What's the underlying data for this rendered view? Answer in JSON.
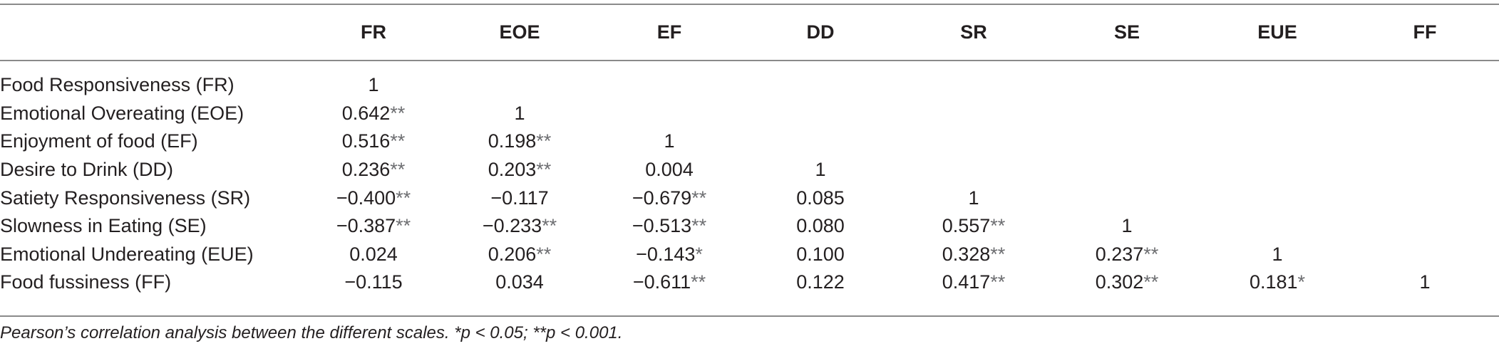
{
  "table": {
    "columns": [
      "FR",
      "EOE",
      "EF",
      "DD",
      "SR",
      "SE",
      "EUE",
      "FF"
    ],
    "rows": [
      {
        "label": "Food Responsiveness (FR)",
        "cells": [
          {
            "v": "1",
            "s": ""
          },
          {
            "v": "",
            "s": ""
          },
          {
            "v": "",
            "s": ""
          },
          {
            "v": "",
            "s": ""
          },
          {
            "v": "",
            "s": ""
          },
          {
            "v": "",
            "s": ""
          },
          {
            "v": "",
            "s": ""
          },
          {
            "v": "",
            "s": ""
          }
        ]
      },
      {
        "label": "Emotional Overeating (EOE)",
        "cells": [
          {
            "v": "0.642",
            "s": "**"
          },
          {
            "v": "1",
            "s": ""
          },
          {
            "v": "",
            "s": ""
          },
          {
            "v": "",
            "s": ""
          },
          {
            "v": "",
            "s": ""
          },
          {
            "v": "",
            "s": ""
          },
          {
            "v": "",
            "s": ""
          },
          {
            "v": "",
            "s": ""
          }
        ]
      },
      {
        "label": "Enjoyment of food (EF)",
        "cells": [
          {
            "v": "0.516",
            "s": "**"
          },
          {
            "v": "0.198",
            "s": "**"
          },
          {
            "v": "1",
            "s": ""
          },
          {
            "v": "",
            "s": ""
          },
          {
            "v": "",
            "s": ""
          },
          {
            "v": "",
            "s": ""
          },
          {
            "v": "",
            "s": ""
          },
          {
            "v": "",
            "s": ""
          }
        ]
      },
      {
        "label": "Desire to Drink (DD)",
        "cells": [
          {
            "v": "0.236",
            "s": "**"
          },
          {
            "v": "0.203",
            "s": "**"
          },
          {
            "v": "0.004",
            "s": ""
          },
          {
            "v": "1",
            "s": ""
          },
          {
            "v": "",
            "s": ""
          },
          {
            "v": "",
            "s": ""
          },
          {
            "v": "",
            "s": ""
          },
          {
            "v": "",
            "s": ""
          }
        ]
      },
      {
        "label": "Satiety Responsiveness (SR)",
        "cells": [
          {
            "v": "−0.400",
            "s": "**"
          },
          {
            "v": "−0.117",
            "s": ""
          },
          {
            "v": "−0.679",
            "s": "**"
          },
          {
            "v": "0.085",
            "s": ""
          },
          {
            "v": "1",
            "s": ""
          },
          {
            "v": "",
            "s": ""
          },
          {
            "v": "",
            "s": ""
          },
          {
            "v": "",
            "s": ""
          }
        ]
      },
      {
        "label": "Slowness in Eating (SE)",
        "cells": [
          {
            "v": "−0.387",
            "s": "**"
          },
          {
            "v": "−0.233",
            "s": "**"
          },
          {
            "v": "−0.513",
            "s": "**"
          },
          {
            "v": "0.080",
            "s": ""
          },
          {
            "v": "0.557",
            "s": "**"
          },
          {
            "v": "1",
            "s": ""
          },
          {
            "v": "",
            "s": ""
          },
          {
            "v": "",
            "s": ""
          }
        ]
      },
      {
        "label": "Emotional Undereating (EUE)",
        "cells": [
          {
            "v": "0.024",
            "s": ""
          },
          {
            "v": "0.206",
            "s": "**"
          },
          {
            "v": "−0.143",
            "s": "*"
          },
          {
            "v": "0.100",
            "s": ""
          },
          {
            "v": "0.328",
            "s": "**"
          },
          {
            "v": "0.237",
            "s": "**"
          },
          {
            "v": "1",
            "s": ""
          },
          {
            "v": "",
            "s": ""
          }
        ]
      },
      {
        "label": "Food fussiness (FF)",
        "cells": [
          {
            "v": "−0.115",
            "s": ""
          },
          {
            "v": "0.034",
            "s": ""
          },
          {
            "v": "−0.611",
            "s": "**"
          },
          {
            "v": "0.122",
            "s": ""
          },
          {
            "v": "0.417",
            "s": "**"
          },
          {
            "v": "0.302",
            "s": "**"
          },
          {
            "v": "0.181",
            "s": "*"
          },
          {
            "v": "1",
            "s": ""
          }
        ]
      }
    ]
  },
  "footnote": "Pearson’s correlation analysis between the different scales.  *p < 0.05;  **p < 0.001."
}
